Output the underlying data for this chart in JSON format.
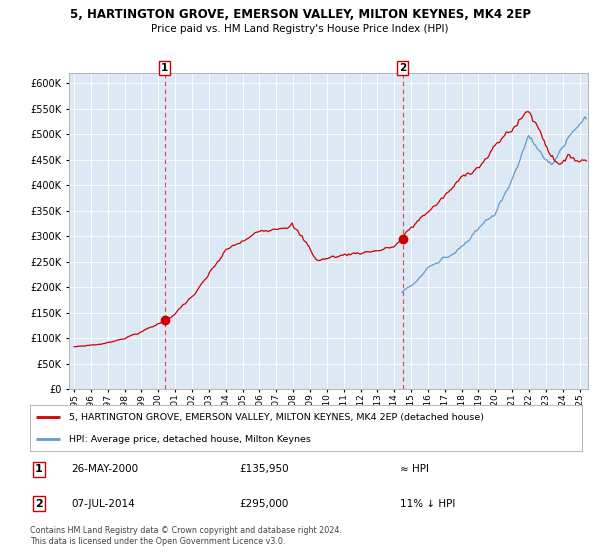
{
  "title": "5, HARTINGTON GROVE, EMERSON VALLEY, MILTON KEYNES, MK4 2EP",
  "subtitle": "Price paid vs. HM Land Registry's House Price Index (HPI)",
  "legend_line1": "5, HARTINGTON GROVE, EMERSON VALLEY, MILTON KEYNES, MK4 2EP (detached house)",
  "legend_line2": "HPI: Average price, detached house, Milton Keynes",
  "annotation1_date": "26-MAY-2000",
  "annotation1_price": "£135,950",
  "annotation1_hpi": "≈ HPI",
  "annotation2_date": "07-JUL-2014",
  "annotation2_price": "£295,000",
  "annotation2_hpi": "11% ↓ HPI",
  "footer": "Contains HM Land Registry data © Crown copyright and database right 2024.\nThis data is licensed under the Open Government Licence v3.0.",
  "ylim": [
    0,
    620000
  ],
  "yticks": [
    0,
    50000,
    100000,
    150000,
    200000,
    250000,
    300000,
    350000,
    400000,
    450000,
    500000,
    550000,
    600000
  ],
  "bg_color": "#dce9f5",
  "red_line_color": "#cc0000",
  "blue_line_color": "#6699cc",
  "marker_color": "#cc0000",
  "vline_color": "#dd4444",
  "marker1_x": 2000.38,
  "marker1_y": 135950,
  "marker2_x": 2014.5,
  "marker2_y": 295000,
  "vline1_x": 2000.38,
  "vline2_x": 2014.5,
  "xlim_left": 1994.7,
  "xlim_right": 2025.5,
  "red_start_year": 1995.0,
  "blue_start_year": 2014.5,
  "red_end_year": 2025.3,
  "blue_end_year": 2025.3
}
